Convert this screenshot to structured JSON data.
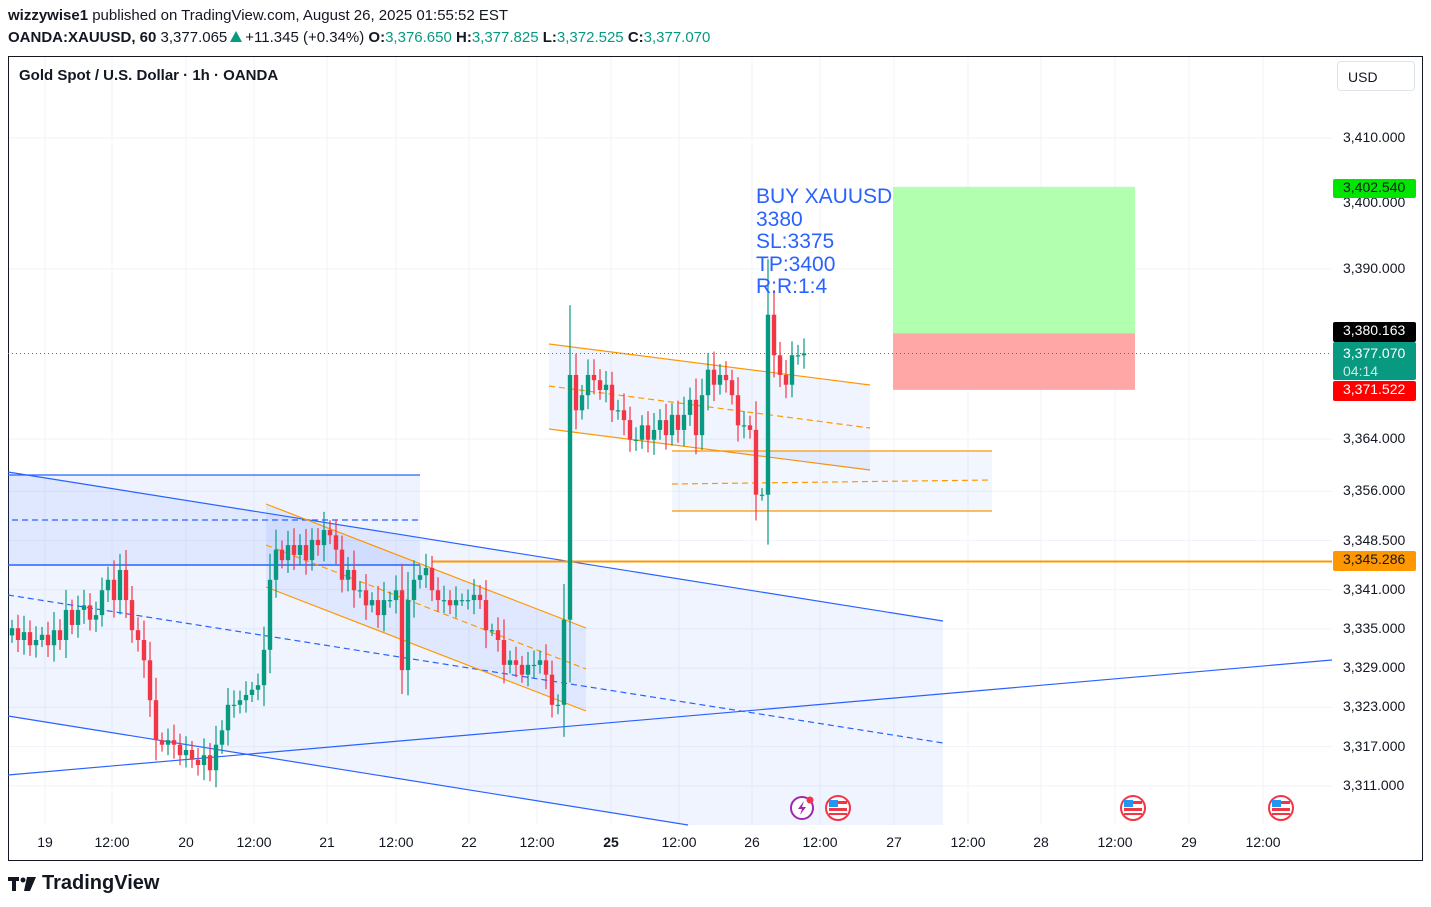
{
  "header": {
    "author": "wizzywise1",
    "published": "published on TradingView.com, August 26, 2025 01:55:52 EST",
    "symbol": "OANDA:XAUUSD, 60",
    "last": "3,377.065",
    "change": "+11.345 (+0.34%)",
    "o_label": "O:",
    "o": "3,376.650",
    "h_label": "H:",
    "h": "3,377.825",
    "l_label": "L:",
    "l": "3,372.525",
    "c_label": "C:",
    "c": "3,377.070"
  },
  "chart_title": "Gold Spot / U.S. Dollar · 1h · OANDA",
  "currency": "USD",
  "annotation": [
    "BUY XAUUSD",
    "3380",
    "SL:3375",
    "TP:3400",
    "R:R:1:4"
  ],
  "tags": {
    "target": "3,402.540",
    "entry": "3,380.163",
    "current": "3,377.070",
    "countdown": "04:14",
    "stop": "3,371.522",
    "horizontal_level": "3,345.286"
  },
  "colors": {
    "up": "#089981",
    "down": "#f23645",
    "drawing_blue": "#2962ff",
    "drawing_orange": "#ff9800",
    "target_fill": "#b2ffb0",
    "stop_fill": "#ffa6a6"
  },
  "brand": "TradingView",
  "chart_data": {
    "type": "candlestick",
    "title": "Gold Spot / U.S. Dollar · 1h · OANDA",
    "ylabel": "USD",
    "ylim": [
      3298,
      3419
    ],
    "yticks": [
      "3,410.000",
      "3,390.000",
      "3,364.000",
      "3,356.000",
      "3,348.500",
      "3,341.000",
      "3,335.000",
      "3,329.000",
      "3,323.000",
      "3,317.000",
      "3,311.000"
    ],
    "yticks_values": [
      3410,
      3390,
      3364,
      3356,
      3348.5,
      3341,
      3335,
      3329,
      3323,
      3317,
      3311
    ],
    "xticks": [
      {
        "label": "19",
        "bold": false
      },
      {
        "label": "12:00",
        "bold": false
      },
      {
        "label": "20",
        "bold": false
      },
      {
        "label": "12:00",
        "bold": false
      },
      {
        "label": "21",
        "bold": false
      },
      {
        "label": "12:00",
        "bold": false
      },
      {
        "label": "22",
        "bold": false
      },
      {
        "label": "12:00",
        "bold": false
      },
      {
        "label": "25",
        "bold": true
      },
      {
        "label": "12:00",
        "bold": false
      },
      {
        "label": "26",
        "bold": false
      },
      {
        "label": "12:00",
        "bold": false
      },
      {
        "label": "27",
        "bold": false
      },
      {
        "label": "12:00",
        "bold": false
      },
      {
        "label": "28",
        "bold": false
      },
      {
        "label": "12:00",
        "bold": false
      },
      {
        "label": "29",
        "bold": false
      },
      {
        "label": "12:00",
        "bold": false
      }
    ],
    "first_open": 3334.0,
    "closes": [
      3335.1,
      3333.3,
      3334.5,
      3332.5,
      3333.3,
      3334.1,
      3332.5,
      3334.8,
      3333.3,
      3337.9,
      3335.6,
      3337.9,
      3338.6,
      3336.4,
      3337.1,
      3340.9,
      3342.5,
      3339.4,
      3344.0,
      3339.4,
      3334.8,
      3333.3,
      3330.2,
      3324.1,
      3318.0,
      3317.3,
      3318.0,
      3317.3,
      3315.7,
      3316.5,
      3315.0,
      3314.2,
      3315.7,
      3313.4,
      3317.3,
      3319.5,
      3323.4,
      3323.4,
      3324.1,
      3324.9,
      3325.7,
      3326.4,
      3331.8,
      3342.5,
      3347.1,
      3345.5,
      3347.8,
      3346.3,
      3347.8,
      3345.5,
      3348.6,
      3347.8,
      3350.1,
      3349.3,
      3347.1,
      3342.5,
      3344.0,
      3340.9,
      3340.9,
      3338.6,
      3339.4,
      3337.1,
      3339.4,
      3339.4,
      3340.9,
      3328.7,
      3339.4,
      3342.5,
      3343.2,
      3344.3,
      3340.9,
      3339.4,
      3339.4,
      3338.6,
      3339.4,
      3339.4,
      3339.4,
      3340.2,
      3339.4,
      3334.8,
      3334.8,
      3333.3,
      3329.5,
      3330.2,
      3329.5,
      3328.0,
      3329.5,
      3329.5,
      3330.2,
      3328.0,
      3323.4,
      3323.4,
      3336.4,
      3373.8,
      3368.4,
      3370.7,
      3373.8,
      3373.0,
      3371.5,
      3372.3,
      3368.4,
      3368.4,
      3366.9,
      3363.9,
      3363.9,
      3366.1,
      3363.9,
      3365.4,
      3366.9,
      3364.6,
      3367.7,
      3365.4,
      3367.7,
      3370.0,
      3364.6,
      3370.7,
      3374.6,
      3372.3,
      3373.8,
      3373.0,
      3370.7,
      3366.1,
      3366.1,
      3365.4,
      3355.5,
      3355.5,
      3383.0,
      3376.8,
      3373.8,
      3372.3,
      3376.8,
      3376.8,
      3377.1
    ],
    "long_position": {
      "entry": 3380.163,
      "target": 3402.54,
      "stop": 3371.522
    },
    "horizontal_line": 3345.286,
    "current_price": 3377.07
  }
}
